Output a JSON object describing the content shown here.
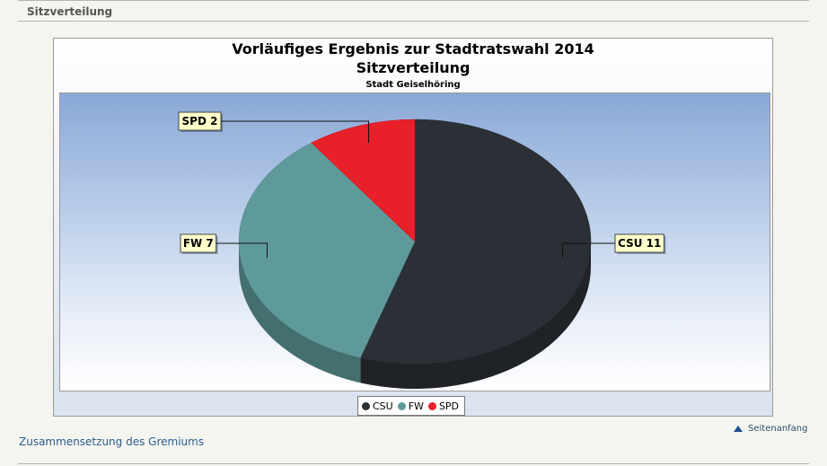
{
  "section": {
    "title": "Sitzverteilung"
  },
  "chart_data": {
    "type": "pie",
    "title": "Vorläufiges Ergebnis zur Stadtratswahl 2014",
    "subtitle": "Sitzverteilung",
    "caption": "Stadt Geiselhöring",
    "categories": [
      "CSU",
      "FW",
      "SPD"
    ],
    "values": [
      11,
      7,
      2
    ],
    "data_labels": [
      "CSU 11",
      "FW 7",
      "SPD 2"
    ],
    "colors": [
      "#2b2f36",
      "#5f9a9a",
      "#e8202a"
    ],
    "legend": {
      "placement": "bottom-center",
      "entries": [
        "CSU",
        "FW",
        "SPD"
      ]
    },
    "style": "3d"
  },
  "footer": {
    "top_link": "Seitenanfang",
    "link": "Zusammensetzung des Gremiums"
  }
}
